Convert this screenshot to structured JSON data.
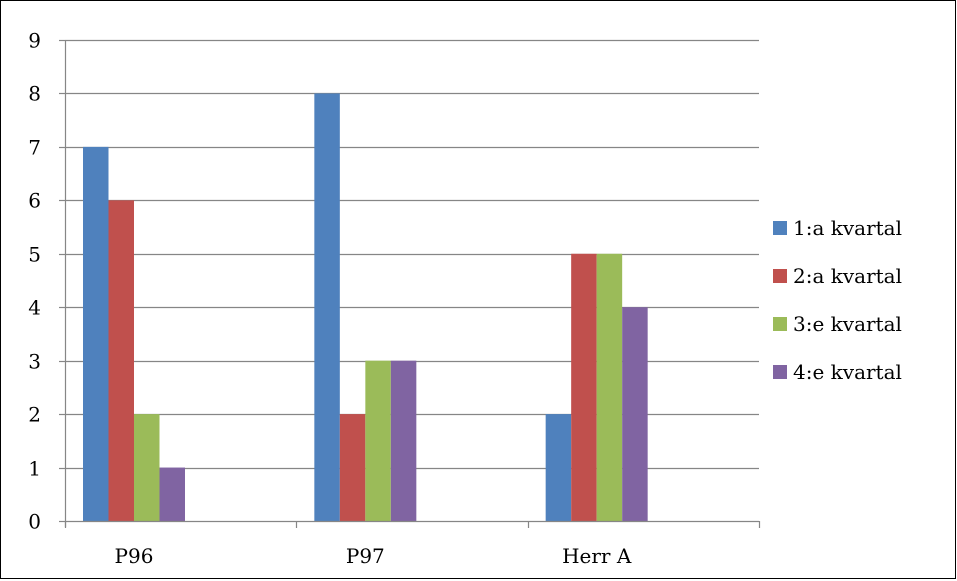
{
  "chart_data": {
    "type": "bar",
    "title": "",
    "xlabel": "",
    "ylabel": "",
    "categories": [
      "P96",
      "P97",
      "Herr A"
    ],
    "series": [
      {
        "name": "1:a kvartal",
        "color": "#4f81bd",
        "values": [
          7,
          8,
          2
        ]
      },
      {
        "name": "2:a kvartal",
        "color": "#c0504d",
        "values": [
          6,
          2,
          5
        ]
      },
      {
        "name": "3:e kvartal",
        "color": "#9bbb59",
        "values": [
          2,
          3,
          5
        ]
      },
      {
        "name": "4:e kvartal",
        "color": "#8064a2",
        "values": [
          1,
          3,
          4
        ]
      }
    ],
    "ylim": [
      0,
      9
    ],
    "yticks": [
      "0",
      "1",
      "2",
      "3",
      "4",
      "5",
      "6",
      "7",
      "8",
      "9"
    ],
    "grid": true,
    "legend_position": "right"
  }
}
